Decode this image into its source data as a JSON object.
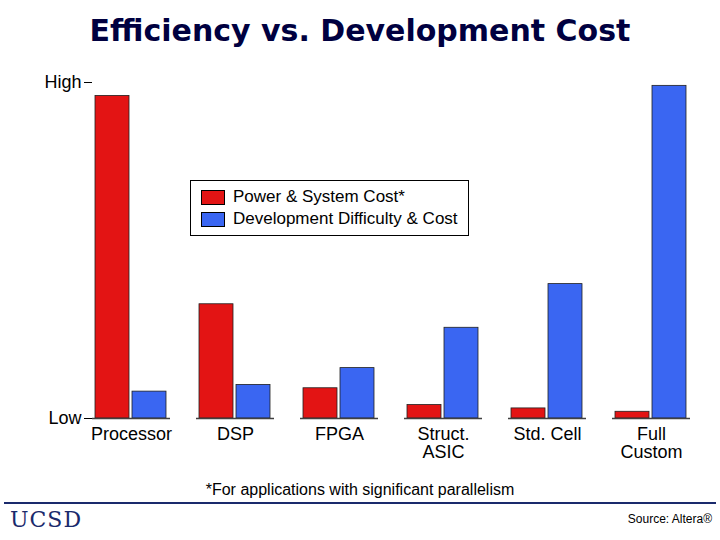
{
  "chart_data": {
    "type": "bar",
    "title": "Efficiency vs. Development Cost",
    "categories": [
      "Processor",
      "DSP",
      "FPGA",
      "Struct.\nASIC",
      "Std. Cell",
      "Full\nCustom"
    ],
    "series": [
      {
        "name": "Power & System Cost*",
        "color": "#e31414",
        "values": [
          96,
          34,
          9,
          4,
          3,
          2
        ]
      },
      {
        "name": "Development Difficulty & Cost",
        "color": "#3a66f2",
        "values": [
          8,
          10,
          15,
          27,
          40,
          99
        ]
      }
    ],
    "ylim": [
      0,
      100
    ],
    "yticks": [
      {
        "value": 0,
        "label": "Low"
      },
      {
        "value": 100,
        "label": "High"
      }
    ],
    "legend": "top",
    "annotations": [
      "*For applications with significant parallelism",
      "UCSD",
      "Source: Altera®"
    ]
  }
}
